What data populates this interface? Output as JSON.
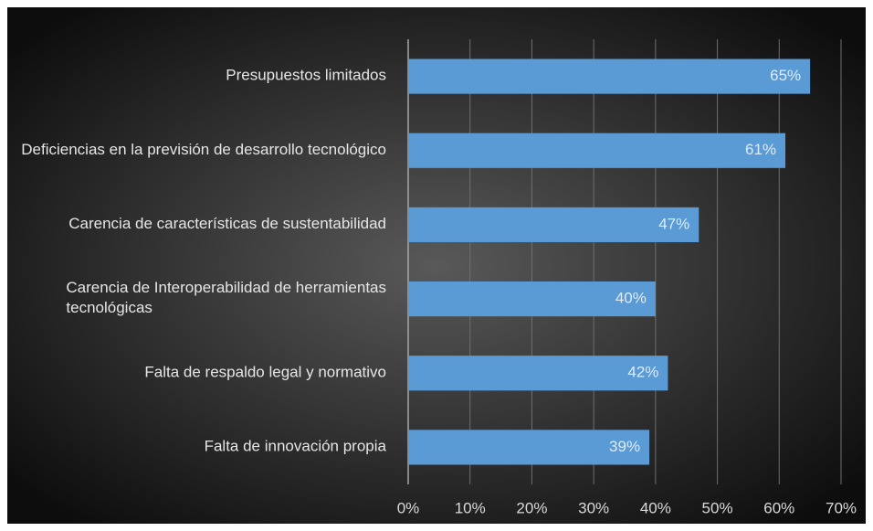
{
  "chart_data": {
    "type": "barh",
    "categories": [
      "Presupuestos limitados",
      "Deficiencias en la previsión de desarrollo tecnológico",
      "Carencia de características de sustentabilidad",
      "Carencia de Interoperabilidad de herramientas tecnológicas",
      "Falta de respaldo legal y normativo",
      "Falta de innovación propia"
    ],
    "values": [
      65,
      61,
      47,
      40,
      42,
      39
    ],
    "value_labels": [
      "65%",
      "61%",
      "47%",
      "40%",
      "42%",
      "39%"
    ],
    "color": "#5b9bd5",
    "xlim": [
      0,
      70
    ],
    "xticks": [
      {
        "value": 0,
        "label": "0%"
      },
      {
        "value": 10,
        "label": "10%"
      },
      {
        "value": 20,
        "label": "20%"
      },
      {
        "value": 30,
        "label": "30%"
      },
      {
        "value": 40,
        "label": "40%"
      },
      {
        "value": 50,
        "label": "50%"
      },
      {
        "value": 60,
        "label": "60%"
      },
      {
        "value": 70,
        "label": "70%"
      }
    ],
    "grid": true
  }
}
